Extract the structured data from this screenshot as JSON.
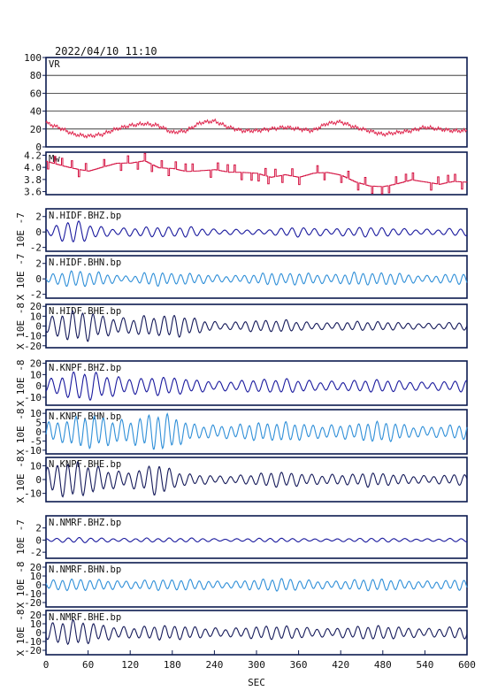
{
  "header": {
    "timestamp": "2022/04/10  11:10"
  },
  "xaxis": {
    "label": "SEC",
    "min": 0,
    "max": 600,
    "ticks": [
      "0",
      "60",
      "120",
      "180",
      "240",
      "300",
      "360",
      "420",
      "480",
      "540",
      "600"
    ]
  },
  "colors": {
    "frame": "#0b1a4f",
    "vr": "#e0284f",
    "mw": "#d41040",
    "bhz": "#1a1a9e",
    "bhn": "#2f8fd8",
    "bhe": "#151a5a",
    "grid": "#222222"
  },
  "chart_data": [
    {
      "type": "line",
      "label": "VR",
      "ylim": [
        0,
        100
      ],
      "yticks": [
        "100",
        "80",
        "60",
        "40",
        "20",
        "0"
      ],
      "grid": true,
      "side_label": "",
      "x": [
        0,
        20,
        40,
        60,
        80,
        100,
        120,
        140,
        160,
        180,
        200,
        220,
        240,
        260,
        280,
        300,
        320,
        340,
        360,
        380,
        400,
        420,
        440,
        460,
        480,
        500,
        520,
        540,
        560,
        580,
        600
      ],
      "y": [
        27,
        21,
        14,
        12,
        14,
        20,
        24,
        26,
        24,
        16,
        18,
        27,
        29,
        22,
        18,
        18,
        20,
        22,
        20,
        18,
        26,
        28,
        22,
        18,
        14,
        16,
        18,
        22,
        20,
        18,
        18
      ]
    },
    {
      "type": "line",
      "label": "Mw",
      "ylim": [
        3.55,
        4.25
      ],
      "yticks": [
        "4.2",
        "4.0",
        "3.8",
        "3.6"
      ],
      "grid": false,
      "side_label": "",
      "x": [
        0,
        20,
        40,
        60,
        80,
        100,
        120,
        140,
        160,
        180,
        200,
        220,
        240,
        260,
        280,
        300,
        320,
        340,
        360,
        380,
        400,
        420,
        440,
        460,
        480,
        500,
        520,
        540,
        560,
        580,
        600
      ],
      "y": [
        4.1,
        4.05,
        4.0,
        3.95,
        4.0,
        4.05,
        4.05,
        4.1,
        4.0,
        4.0,
        3.95,
        3.95,
        3.95,
        3.9,
        3.9,
        3.9,
        3.85,
        3.9,
        3.85,
        3.9,
        3.9,
        3.85,
        3.75,
        3.7,
        3.7,
        3.75,
        3.8,
        3.75,
        3.7,
        3.75,
        3.75
      ]
    },
    {
      "type": "line",
      "label": "N.HIDF.BHZ.bp",
      "ylim": [
        -2.5,
        3
      ],
      "yticks": [
        "2",
        "0",
        "-2"
      ],
      "side_label": "10E  -7",
      "color": "bhz",
      "x": [
        0,
        20,
        40,
        60,
        80,
        100,
        120,
        140,
        160,
        180,
        200,
        220,
        240,
        260,
        280,
        300,
        320,
        340,
        360,
        380,
        400,
        420,
        440,
        460,
        480,
        500,
        520,
        540,
        560,
        580,
        600
      ],
      "y": [
        0.5,
        1.0,
        1.5,
        1.0,
        0.8,
        0.6,
        0.8,
        0.7,
        0.7,
        0.5,
        0.7,
        0.6,
        0.5,
        0.5,
        0.4,
        0.3,
        0.3,
        0.5,
        0.7,
        0.7,
        0.6,
        0.6,
        0.6,
        0.6,
        0.5,
        0.5,
        0.5,
        0.5,
        0.5,
        0.5,
        0.5
      ]
    },
    {
      "type": "line",
      "label": "N.HIDF.BHN.bp",
      "ylim": [
        -2.5,
        3
      ],
      "yticks": [
        "2",
        "0",
        "-2"
      ],
      "side_label": "X  10E  -7",
      "color": "bhn",
      "x": [
        0,
        20,
        40,
        60,
        80,
        100,
        120,
        140,
        160,
        180,
        200,
        220,
        240,
        260,
        280,
        300,
        320,
        340,
        360,
        380,
        400,
        420,
        440,
        460,
        480,
        500,
        520,
        540,
        560,
        580,
        600
      ],
      "y": [
        0.5,
        0.8,
        1.0,
        0.9,
        1.0,
        0.7,
        0.5,
        0.9,
        0.9,
        0.6,
        0.7,
        0.7,
        0.7,
        0.6,
        0.6,
        0.6,
        0.8,
        0.6,
        0.9,
        0.9,
        0.8,
        0.8,
        0.9,
        0.7,
        0.7,
        0.8,
        0.7,
        0.6,
        0.7,
        0.7,
        0.7
      ]
    },
    {
      "type": "line",
      "label": "N.HIDF.BHE.bp",
      "ylim": [
        -22,
        22
      ],
      "yticks": [
        "20",
        "10",
        "0",
        "-10",
        "-20"
      ],
      "side_label": "X  10E  -8",
      "color": "bhe",
      "x": [
        0,
        20,
        40,
        60,
        80,
        100,
        120,
        140,
        160,
        180,
        200,
        220,
        240,
        260,
        280,
        300,
        320,
        340,
        360,
        380,
        400,
        420,
        440,
        460,
        480,
        500,
        520,
        540,
        560,
        580,
        600
      ],
      "y": [
        8,
        12,
        14,
        15,
        13,
        12,
        11,
        12,
        9,
        11,
        9,
        8,
        6,
        5,
        6,
        6,
        5,
        6,
        5,
        5,
        5,
        5,
        5,
        4,
        4,
        4,
        4,
        4,
        4,
        4,
        4
      ]
    },
    {
      "type": "line",
      "label": "N.KNPF.BHZ.bp",
      "ylim": [
        -17,
        22
      ],
      "yticks": [
        "20",
        "10",
        "0",
        "-10"
      ],
      "side_label": "X  10E  -8",
      "color": "bhz",
      "x": [
        0,
        20,
        40,
        60,
        80,
        100,
        120,
        140,
        160,
        180,
        200,
        220,
        240,
        260,
        280,
        300,
        320,
        340,
        360,
        380,
        400,
        420,
        440,
        460,
        480,
        500,
        520,
        540,
        560,
        580,
        600
      ],
      "y": [
        6,
        8,
        11,
        13,
        13,
        12,
        10,
        8,
        8,
        7,
        6,
        6,
        6,
        6,
        6,
        6,
        5,
        6,
        6,
        6,
        6,
        5,
        5,
        5,
        5,
        5,
        5,
        5,
        5,
        5,
        5
      ]
    },
    {
      "type": "line",
      "label": "N.KNPF.BHN.bp",
      "ylim": [
        -12,
        12
      ],
      "yticks": [
        "10",
        "5",
        "0",
        "-5",
        "-10"
      ],
      "side_label": "X  10E  -8",
      "color": "bhn",
      "x": [
        0,
        20,
        40,
        60,
        80,
        100,
        120,
        140,
        160,
        180,
        200,
        220,
        240,
        260,
        280,
        300,
        320,
        340,
        360,
        380,
        400,
        420,
        440,
        460,
        480,
        500,
        520,
        540,
        560,
        580,
        600
      ],
      "y": [
        6,
        5,
        7,
        9,
        10,
        9,
        9,
        10,
        10,
        8,
        5,
        4,
        5,
        5,
        5,
        5,
        4,
        5,
        5,
        5,
        5,
        5,
        4,
        5,
        5,
        5,
        4,
        4,
        4,
        4,
        4
      ]
    },
    {
      "type": "line",
      "label": "N.KNPF.BHE.bp",
      "ylim": [
        -16,
        16
      ],
      "yticks": [
        "10",
        "0",
        "-10"
      ],
      "side_label": "X  10E  -8",
      "color": "bhe",
      "x": [
        0,
        20,
        40,
        60,
        80,
        100,
        120,
        140,
        160,
        180,
        200,
        220,
        240,
        260,
        280,
        300,
        320,
        340,
        360,
        380,
        400,
        420,
        440,
        460,
        480,
        500,
        520,
        540,
        560,
        580,
        600
      ],
      "y": [
        10,
        11,
        12,
        11,
        10,
        9,
        8,
        10,
        12,
        6,
        4,
        4,
        4,
        4,
        4,
        4,
        5,
        5,
        5,
        5,
        5,
        5,
        4,
        5,
        4,
        4,
        4,
        4,
        4,
        4,
        4
      ]
    },
    {
      "type": "line",
      "label": "N.NMRF.BHZ.bp",
      "ylim": [
        -3,
        4
      ],
      "yticks": [
        "2",
        "0",
        "-2"
      ],
      "side_label": "10E  -7",
      "color": "bhz",
      "x": [
        0,
        20,
        40,
        60,
        80,
        100,
        120,
        140,
        160,
        180,
        200,
        220,
        240,
        260,
        280,
        300,
        320,
        340,
        360,
        380,
        400,
        420,
        440,
        460,
        480,
        500,
        520,
        540,
        560,
        580,
        600
      ],
      "y": [
        0.3,
        0.3,
        0.4,
        0.4,
        0.4,
        0.4,
        0.4,
        0.4,
        0.3,
        0.3,
        0.3,
        0.4,
        0.3,
        0.3,
        0.3,
        0.3,
        0.3,
        0.3,
        0.3,
        0.3,
        0.3,
        0.3,
        0.3,
        0.3,
        0.3,
        0.3,
        0.3,
        0.3,
        0.3,
        0.3,
        0.3
      ]
    },
    {
      "type": "line",
      "label": "N.NMRF.BHN.bp",
      "ylim": [
        -25,
        25
      ],
      "yticks": [
        "20",
        "10",
        "0",
        "-10",
        "-20"
      ],
      "side_label": "X  10E  -8",
      "color": "bhn",
      "x": [
        0,
        20,
        40,
        60,
        80,
        100,
        120,
        140,
        160,
        180,
        200,
        220,
        240,
        260,
        280,
        300,
        320,
        340,
        360,
        380,
        400,
        420,
        440,
        460,
        480,
        500,
        520,
        540,
        560,
        580,
        600
      ],
      "y": [
        5,
        6,
        6,
        6,
        7,
        7,
        6,
        6,
        6,
        5,
        6,
        6,
        6,
        5,
        6,
        6,
        6,
        7,
        6,
        7,
        6,
        6,
        6,
        6,
        6,
        6,
        6,
        6,
        6,
        6,
        6
      ]
    },
    {
      "type": "line",
      "label": "N.NMRF.BHE.bp",
      "ylim": [
        -25,
        25
      ],
      "yticks": [
        "20",
        "10",
        "0",
        "-10",
        "-20"
      ],
      "side_label": "X  10E  -8",
      "color": "bhe",
      "x": [
        0,
        20,
        40,
        60,
        80,
        100,
        120,
        140,
        160,
        180,
        200,
        220,
        240,
        260,
        280,
        300,
        320,
        340,
        360,
        380,
        400,
        420,
        440,
        460,
        480,
        500,
        520,
        540,
        560,
        580,
        600
      ],
      "y": [
        10,
        12,
        13,
        12,
        11,
        10,
        9,
        8,
        8,
        7,
        7,
        7,
        7,
        7,
        7,
        7,
        7,
        7,
        7,
        7,
        7,
        7,
        7,
        7,
        7,
        7,
        7,
        7,
        7,
        7,
        7
      ]
    }
  ]
}
